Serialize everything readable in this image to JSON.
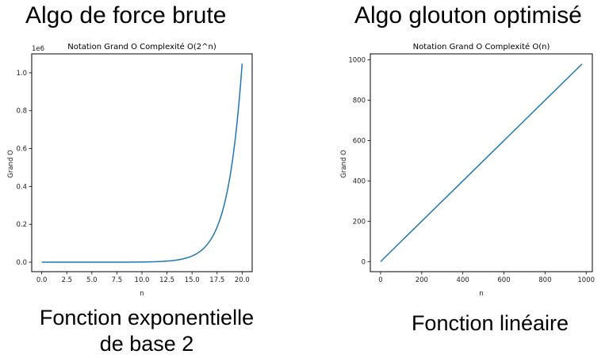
{
  "headings": {
    "left": "Algo de force brute",
    "right": "Algo glouton optimisé"
  },
  "captions": {
    "left_line1": "Fonction exponentielle",
    "left_line2": "de base 2",
    "right": "Fonction linéaire"
  },
  "colors": {
    "line": "#1f77b4",
    "axes": "#000000"
  },
  "chart_data": [
    {
      "type": "line",
      "title": "Notation Grand O Complexité O(2^n)",
      "xlabel": "n",
      "ylabel": "Grand O",
      "offset_label": "1e6",
      "function": "2^n",
      "xlim": [
        -1,
        21
      ],
      "ylim": [
        -0.05,
        1.1
      ],
      "x_ticks": [
        0,
        2.5,
        5,
        7.5,
        10,
        12.5,
        15,
        17.5,
        20
      ],
      "x_tick_labels": [
        "0.0",
        "2.5",
        "5.0",
        "7.5",
        "10.0",
        "12.5",
        "15.0",
        "17.5",
        "20.0"
      ],
      "y_ticks": [
        0,
        0.2,
        0.4,
        0.6,
        0.8,
        1.0
      ],
      "y_tick_labels": [
        "0.0",
        "0.2",
        "0.4",
        "0.6",
        "0.8",
        "1.0"
      ],
      "series": [
        {
          "x": [
            0,
            1,
            2,
            3,
            4,
            5,
            6,
            7,
            8,
            9,
            10,
            11,
            12,
            13,
            14,
            15,
            16,
            17,
            18,
            19,
            20
          ],
          "values": [
            1e-06,
            2e-06,
            4e-06,
            8e-06,
            1.6e-05,
            3.2e-05,
            6.4e-05,
            0.000128,
            0.000256,
            0.000512,
            0.001024,
            0.002048,
            0.004096,
            0.008192,
            0.016384,
            0.032768,
            0.065536,
            0.131072,
            0.262144,
            0.524288,
            1.048576
          ]
        }
      ]
    },
    {
      "type": "line",
      "title": "Notation Grand O Complexité O(n)",
      "xlabel": "n",
      "ylabel": "Grand O",
      "function": "n",
      "xlim": [
        -50,
        1030
      ],
      "ylim": [
        -50,
        1030
      ],
      "x_ticks": [
        0,
        200,
        400,
        600,
        800,
        1000
      ],
      "x_tick_labels": [
        "0",
        "200",
        "400",
        "600",
        "800",
        "1000"
      ],
      "y_ticks": [
        0,
        200,
        400,
        600,
        800,
        1000
      ],
      "y_tick_labels": [
        "0",
        "200",
        "400",
        "600",
        "800",
        "1000"
      ],
      "series": [
        {
          "x": [
            0,
            980
          ],
          "values": [
            0,
            980
          ]
        }
      ]
    }
  ]
}
